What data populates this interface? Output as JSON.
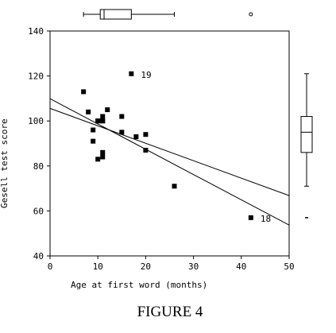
{
  "caption": "FIGURE 4",
  "chart_data": {
    "type": "scatter",
    "title": "",
    "xlabel": "Age at first word (months)",
    "ylabel": "Gesell test score",
    "xlim": [
      0,
      50
    ],
    "ylim": [
      40,
      140
    ],
    "xticks": [
      0,
      10,
      20,
      30,
      40,
      50
    ],
    "yticks": [
      40,
      60,
      80,
      100,
      120,
      140
    ],
    "grid": false,
    "legend": "none",
    "points": [
      {
        "x": 15,
        "y": 95
      },
      {
        "x": 26,
        "y": 71
      },
      {
        "x": 10,
        "y": 83
      },
      {
        "x": 9,
        "y": 91
      },
      {
        "x": 15,
        "y": 102
      },
      {
        "x": 20,
        "y": 87
      },
      {
        "x": 18,
        "y": 93
      },
      {
        "x": 11,
        "y": 100
      },
      {
        "x": 8,
        "y": 104
      },
      {
        "x": 20,
        "y": 94
      },
      {
        "x": 7,
        "y": 113
      },
      {
        "x": 9,
        "y": 96
      },
      {
        "x": 10,
        "y": 100
      },
      {
        "x": 11,
        "y": 86
      },
      {
        "x": 11,
        "y": 84
      },
      {
        "x": 10,
        "y": 100
      },
      {
        "x": 12,
        "y": 105
      },
      {
        "x": 42,
        "y": 57,
        "label": "18"
      },
      {
        "x": 17,
        "y": 121,
        "label": "19"
      },
      {
        "x": 11,
        "y": 102
      },
      {
        "x": 11,
        "y": 100
      }
    ],
    "lines": [
      {
        "x": [
          0,
          50
        ],
        "y": [
          109.9,
          53.7
        ]
      },
      {
        "x": [
          0,
          50
        ],
        "y": [
          105.6,
          66.8
        ]
      }
    ],
    "marginal_boxplots": {
      "x": {
        "whisker_low": 7,
        "q1": 10.5,
        "median": 11.3,
        "q3": 17,
        "whisker_high": 26,
        "outliers": [
          42
        ]
      },
      "y": {
        "whisker_low": 71,
        "q1": 86,
        "median": 95,
        "q3": 102,
        "whisker_high": 121,
        "outliers": [
          57
        ]
      }
    }
  }
}
